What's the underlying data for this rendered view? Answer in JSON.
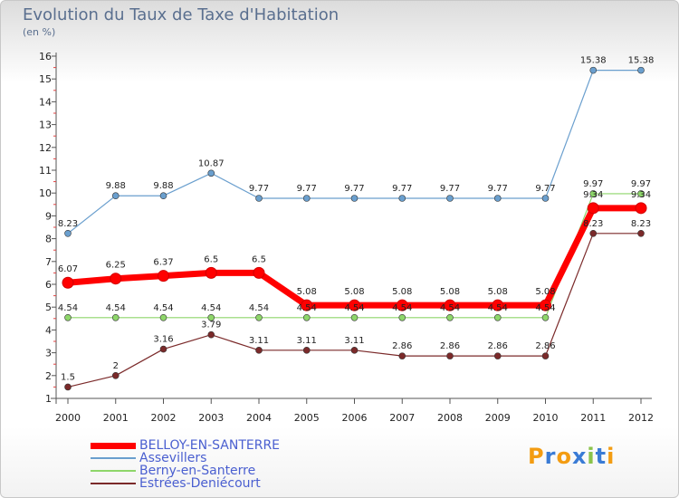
{
  "chart_data": {
    "type": "line",
    "title": "Evolution du Taux de Taxe d'Habitation",
    "subtitle": "(en %)",
    "categories": [
      "2000",
      "2001",
      "2002",
      "2003",
      "2004",
      "2005",
      "2006",
      "2007",
      "2008",
      "2009",
      "2010",
      "2011",
      "2012"
    ],
    "ylim": [
      1,
      16
    ],
    "yticks": [
      1,
      2,
      3,
      4,
      5,
      6,
      7,
      8,
      9,
      10,
      11,
      12,
      13,
      14,
      15,
      16
    ],
    "grid": false,
    "legend_position": "bottom-left",
    "series": [
      {
        "name": "BELLOY-EN-SANTERRE",
        "color": "#ff0000",
        "width": 7,
        "marker": 6,
        "values": [
          6.07,
          6.25,
          6.37,
          6.5,
          6.5,
          5.08,
          5.08,
          5.08,
          5.08,
          5.08,
          5.08,
          9.34,
          9.34
        ],
        "labels": [
          "6.07",
          "6.25",
          "6.37",
          "6.5",
          "6.5",
          "5.08",
          "5.08",
          "5.08",
          "5.08",
          "5.08",
          "5.08",
          "9.34",
          "9.34"
        ]
      },
      {
        "name": "Assevillers",
        "color": "#6a9fce",
        "width": 1.2,
        "marker": 3.5,
        "values": [
          8.23,
          9.88,
          9.88,
          10.87,
          9.77,
          9.77,
          9.77,
          9.77,
          9.77,
          9.77,
          9.77,
          15.38,
          15.38
        ],
        "labels": [
          "8.23",
          "9.88",
          "9.88",
          "10.87",
          "9.77",
          "9.77",
          "9.77",
          "9.77",
          "9.77",
          "9.77",
          "9.77",
          "15.38",
          "15.38"
        ]
      },
      {
        "name": "Berny-en-Santerre",
        "color": "#8ed66a",
        "width": 1.2,
        "marker": 3.5,
        "values": [
          4.54,
          4.54,
          4.54,
          4.54,
          4.54,
          4.54,
          4.54,
          4.54,
          4.54,
          4.54,
          4.54,
          9.97,
          9.97
        ],
        "labels": [
          "4.54",
          "4.54",
          "4.54",
          "4.54",
          "4.54",
          "4.54",
          "4.54",
          "4.54",
          "4.54",
          "4.54",
          "4.54",
          "9.97",
          "9.97"
        ]
      },
      {
        "name": "Estrées-Deniécourt",
        "color": "#7b2a2a",
        "width": 1.2,
        "marker": 3.5,
        "values": [
          1.5,
          2,
          3.16,
          3.79,
          3.11,
          3.11,
          3.11,
          2.86,
          2.86,
          2.86,
          2.86,
          8.23,
          8.23
        ],
        "labels": [
          "1.5",
          "2",
          "3.16",
          "3.79",
          "3.11",
          "3.11",
          "3.11",
          "2.86",
          "2.86",
          "2.86",
          "2.86",
          "8.23",
          "8.23"
        ]
      }
    ]
  },
  "legend": [
    {
      "label": "BELLOY-EN-SANTERRE",
      "color": "#ff0000"
    },
    {
      "label": "Assevillers",
      "color": "#6a9fce"
    },
    {
      "label": "Berny-en-Santerre",
      "color": "#8ed66a"
    },
    {
      "label": "Estrées-Deniécourt",
      "color": "#7b2a2a"
    }
  ],
  "logo": {
    "letters": [
      "P",
      "r",
      "o",
      "x",
      "i",
      "t",
      "i"
    ],
    "colors": [
      "#f39c12",
      "#3a7bd5",
      "#f39c12",
      "#3a7bd5",
      "#8bc34a",
      "#3a7bd5",
      "#f39c12"
    ]
  }
}
